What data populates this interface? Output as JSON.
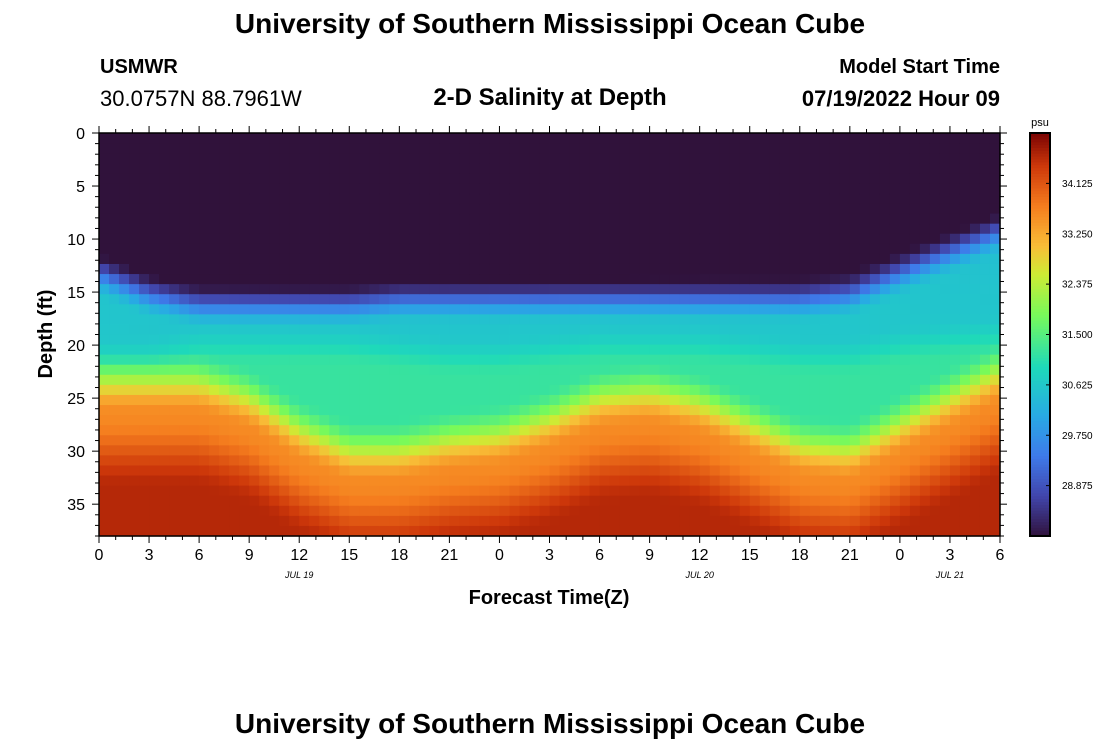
{
  "header": {
    "title": "University of Southern Mississippi Ocean Cube",
    "station": "USMWR",
    "coords": "30.0757N  88.7961W",
    "subtitle": "2-D Salinity at Depth",
    "model_label": "Model Start Time",
    "model_time": "07/19/2022 Hour 09"
  },
  "footer": {
    "title": "University of Southern Mississippi Ocean Cube"
  },
  "chart_data": {
    "type": "heatmap",
    "title": "2-D Salinity at Depth",
    "xlabel": "Forecast Time(Z)",
    "ylabel": "Depth (ft)",
    "xlim": [
      0,
      54
    ],
    "ylim": [
      0,
      38
    ],
    "x_ticks": [
      0,
      3,
      6,
      9,
      12,
      15,
      18,
      21,
      24,
      27,
      30,
      33,
      36,
      39,
      42,
      45,
      48,
      51,
      54
    ],
    "x_tick_labels": [
      "0",
      "3",
      "6",
      "9",
      "12",
      "15",
      "18",
      "21",
      "0",
      "3",
      "6",
      "9",
      "12",
      "15",
      "18",
      "21",
      "0",
      "3",
      "6"
    ],
    "y_ticks": [
      0,
      5,
      10,
      15,
      20,
      25,
      30,
      35
    ],
    "y_tick_labels": [
      "0",
      "5",
      "10",
      "15",
      "20",
      "25",
      "30",
      "35"
    ],
    "date_labels": [
      {
        "text": "JUL 19",
        "hour": 12
      },
      {
        "text": "JUL 20",
        "hour": 36
      },
      {
        "text": "JUL 21",
        "hour": 51
      }
    ],
    "colorbar": {
      "unit": "psu",
      "min": 28.0,
      "max": 35.0,
      "tick_values": [
        34.125,
        33.25,
        32.375,
        31.5,
        30.625,
        29.75,
        28.875
      ],
      "tick_labels": [
        "34.125",
        "33.250",
        "32.375",
        "31.500",
        "30.625",
        "29.750",
        "28.875"
      ]
    },
    "field_description": "Salinity (psu) vs forecast hour (x) and depth in ft (y); low-salinity ~28 psu layer near surface, ~30.5-31.5 psu mid layer, ~34.5 psu at bottom.",
    "surface_band_depth_ft": [
      14,
      16,
      17,
      17,
      17,
      17,
      16.5,
      16.5,
      16.5,
      16.5,
      16.5,
      16.5,
      16.5,
      16.5,
      16.5,
      16,
      14,
      12
    ],
    "mid_band_depth_ft": [
      21,
      21,
      20,
      20,
      20,
      20,
      20.5,
      21,
      21,
      20.5,
      20,
      20,
      20,
      20.5,
      21,
      21,
      20,
      19.5
    ],
    "deep_band_depth_ft": [
      24.5,
      24.5,
      24.5,
      26,
      29,
      31,
      31,
      30,
      29.5,
      28,
      26,
      25.5,
      26.5,
      28.5,
      30.5,
      31,
      28.5,
      26
    ]
  }
}
